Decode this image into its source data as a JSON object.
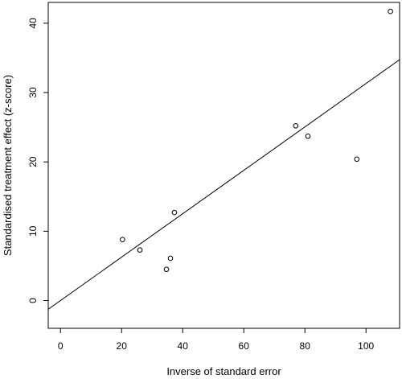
{
  "chart_data": {
    "type": "scatter",
    "title": "",
    "xlabel": "Inverse of standard error",
    "ylabel": "Standardised treatment effect (z-score)",
    "xlim": [
      -4,
      111
    ],
    "ylim": [
      -4,
      43
    ],
    "x_ticks": [
      0,
      20,
      40,
      60,
      80,
      100
    ],
    "y_ticks": [
      0,
      10,
      20,
      30,
      40
    ],
    "x_tick_labels": [
      "0",
      "20",
      "40",
      "60",
      "80",
      "100"
    ],
    "y_tick_labels": [
      "0",
      "10",
      "20",
      "30",
      "40"
    ],
    "grid": false,
    "legend": "none",
    "points": [
      {
        "x": 20.3,
        "y": 8.8
      },
      {
        "x": 26.0,
        "y": 7.3
      },
      {
        "x": 34.7,
        "y": 4.5
      },
      {
        "x": 36.0,
        "y": 6.1
      },
      {
        "x": 37.3,
        "y": 12.7
      },
      {
        "x": 77.0,
        "y": 25.2
      },
      {
        "x": 81.0,
        "y": 23.7
      },
      {
        "x": 97.0,
        "y": 20.4
      },
      {
        "x": 108.0,
        "y": 41.7
      }
    ],
    "fit_line": {
      "intercept": 0,
      "slope": 0.313
    }
  }
}
